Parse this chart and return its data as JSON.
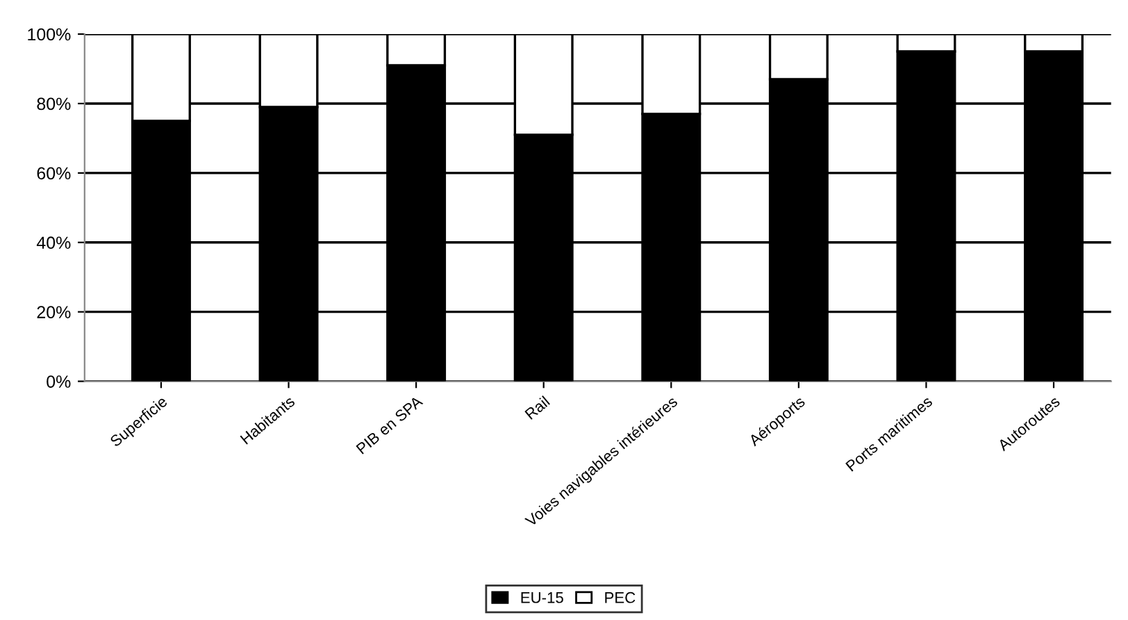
{
  "chart_data": {
    "type": "bar",
    "stacked": true,
    "categories": [
      "Superficie",
      "Habitants",
      "PIB en SPA",
      "Rail",
      "Voies navigables intérieures",
      "Aéroports",
      "Ports maritimes",
      "Autoroutes"
    ],
    "series": [
      {
        "name": "EU-15",
        "color": "#000000",
        "values": [
          75,
          79,
          91,
          71,
          77,
          87,
          95,
          95
        ]
      },
      {
        "name": "PEC",
        "color": "#ffffff",
        "values": [
          25,
          21,
          9,
          29,
          23,
          13,
          5,
          5
        ]
      }
    ],
    "ylim": [
      0,
      100
    ],
    "yticks": [
      {
        "value": 0,
        "label": "0%"
      },
      {
        "value": 20,
        "label": "20%"
      },
      {
        "value": 40,
        "label": "40%"
      },
      {
        "value": 60,
        "label": "60%"
      },
      {
        "value": 80,
        "label": "80%"
      },
      {
        "value": 100,
        "label": "100%"
      }
    ],
    "grid": "y",
    "legend": "bottom"
  }
}
